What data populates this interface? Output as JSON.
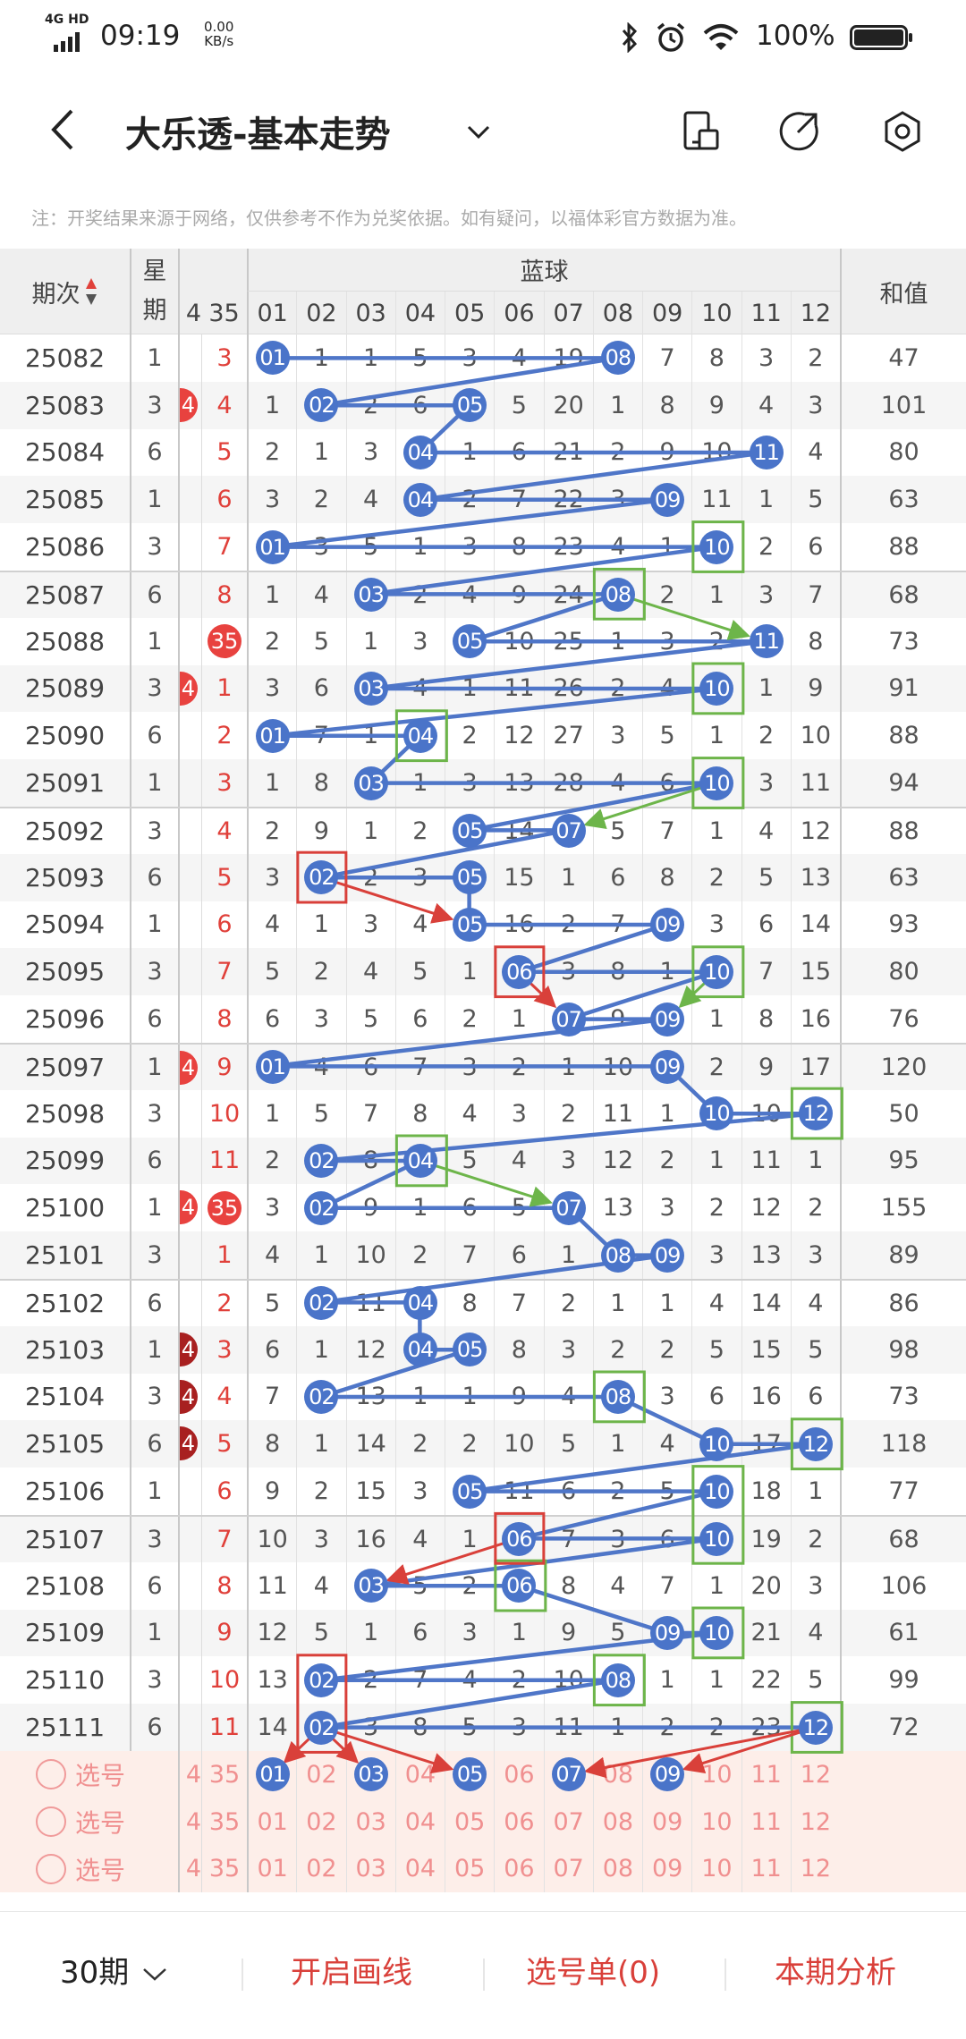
{
  "status_bar": {
    "network": "4G HD",
    "time": "09:19",
    "speed_value": "0.00",
    "speed_unit": "KB/s",
    "battery": "100%"
  },
  "header": {
    "title": "大乐透-基本走势",
    "icons": [
      "back-icon",
      "chevron-down-icon",
      "phone-icon",
      "share-icon",
      "settings-icon"
    ]
  },
  "note": "注：开奖结果来源于网络，仅供参考不作为兑奖依据。如有疑问，以福体彩官方数据为准。",
  "table": {
    "headers": {
      "period": "期次",
      "weekday_1": "星",
      "weekday_2": "期",
      "group": "蓝球",
      "sum": "和值",
      "partial": "4",
      "col35": "35",
      "blue_cols": [
        "01",
        "02",
        "03",
        "04",
        "05",
        "06",
        "07",
        "08",
        "09",
        "10",
        "11",
        "12"
      ]
    },
    "colors": {
      "ball": "#4a74c9",
      "red": "#e8423f",
      "green": "#6db54a",
      "box_red": "#d9403a"
    },
    "rows": [
      {
        "period": "25082",
        "weekday": "1",
        "c35": "3",
        "ball35": false,
        "mark34": null,
        "cells": [
          "01",
          "1",
          "1",
          "5",
          "3",
          "4",
          "19",
          "08",
          "7",
          "8",
          "3",
          "2"
        ],
        "balls": [
          1,
          8
        ],
        "sum": "47"
      },
      {
        "period": "25083",
        "weekday": "3",
        "c35": "4",
        "ball35": false,
        "mark34": "red",
        "cells": [
          "1",
          "02",
          "2",
          "6",
          "05",
          "5",
          "20",
          "1",
          "8",
          "9",
          "4",
          "3"
        ],
        "balls": [
          2,
          5
        ],
        "sum": "101"
      },
      {
        "period": "25084",
        "weekday": "6",
        "c35": "5",
        "ball35": false,
        "mark34": null,
        "cells": [
          "2",
          "1",
          "3",
          "04",
          "1",
          "6",
          "21",
          "2",
          "9",
          "10",
          "11",
          "4"
        ],
        "balls": [
          4,
          11
        ],
        "sum": "80"
      },
      {
        "period": "25085",
        "weekday": "1",
        "c35": "6",
        "ball35": false,
        "mark34": null,
        "cells": [
          "3",
          "2",
          "4",
          "04",
          "2",
          "7",
          "22",
          "3",
          "09",
          "11",
          "1",
          "5"
        ],
        "balls": [
          4,
          9
        ],
        "sum": "63"
      },
      {
        "period": "25086",
        "weekday": "3",
        "c35": "7",
        "ball35": false,
        "mark34": null,
        "cells": [
          "01",
          "3",
          "5",
          "1",
          "3",
          "8",
          "23",
          "4",
          "1",
          "10",
          "2",
          "6"
        ],
        "balls": [
          1,
          10
        ],
        "sum": "88"
      },
      {
        "period": "25087",
        "weekday": "6",
        "c35": "8",
        "ball35": false,
        "mark34": null,
        "cells": [
          "1",
          "4",
          "03",
          "2",
          "4",
          "9",
          "24",
          "08",
          "2",
          "1",
          "3",
          "7"
        ],
        "balls": [
          3,
          8
        ],
        "sum": "68"
      },
      {
        "period": "25088",
        "weekday": "1",
        "c35": "35",
        "ball35": true,
        "mark34": null,
        "cells": [
          "2",
          "5",
          "1",
          "3",
          "05",
          "10",
          "25",
          "1",
          "3",
          "2",
          "11",
          "8"
        ],
        "balls": [
          5,
          11
        ],
        "sum": "73"
      },
      {
        "period": "25089",
        "weekday": "3",
        "c35": "1",
        "ball35": false,
        "mark34": "red",
        "cells": [
          "3",
          "6",
          "03",
          "4",
          "1",
          "11",
          "26",
          "2",
          "4",
          "10",
          "1",
          "9"
        ],
        "balls": [
          3,
          10
        ],
        "sum": "91"
      },
      {
        "period": "25090",
        "weekday": "6",
        "c35": "2",
        "ball35": false,
        "mark34": null,
        "cells": [
          "01",
          "7",
          "1",
          "04",
          "2",
          "12",
          "27",
          "3",
          "5",
          "1",
          "2",
          "10"
        ],
        "balls": [
          1,
          4
        ],
        "sum": "88"
      },
      {
        "period": "25091",
        "weekday": "1",
        "c35": "3",
        "ball35": false,
        "mark34": null,
        "cells": [
          "1",
          "8",
          "03",
          "1",
          "3",
          "13",
          "28",
          "4",
          "6",
          "10",
          "3",
          "11"
        ],
        "balls": [
          3,
          10
        ],
        "sum": "94"
      },
      {
        "period": "25092",
        "weekday": "3",
        "c35": "4",
        "ball35": false,
        "mark34": null,
        "cells": [
          "2",
          "9",
          "1",
          "2",
          "05",
          "14",
          "07",
          "5",
          "7",
          "1",
          "4",
          "12"
        ],
        "balls": [
          5,
          7
        ],
        "sum": "88"
      },
      {
        "period": "25093",
        "weekday": "6",
        "c35": "5",
        "ball35": false,
        "mark34": null,
        "cells": [
          "3",
          "02",
          "2",
          "3",
          "05",
          "15",
          "1",
          "6",
          "8",
          "2",
          "5",
          "13"
        ],
        "balls": [
          2,
          5
        ],
        "sum": "63"
      },
      {
        "period": "25094",
        "weekday": "1",
        "c35": "6",
        "ball35": false,
        "mark34": null,
        "cells": [
          "4",
          "1",
          "3",
          "4",
          "05",
          "16",
          "2",
          "7",
          "09",
          "3",
          "6",
          "14"
        ],
        "balls": [
          5,
          9
        ],
        "sum": "93"
      },
      {
        "period": "25095",
        "weekday": "3",
        "c35": "7",
        "ball35": false,
        "mark34": null,
        "cells": [
          "5",
          "2",
          "4",
          "5",
          "1",
          "06",
          "3",
          "8",
          "1",
          "10",
          "7",
          "15"
        ],
        "balls": [
          6,
          10
        ],
        "sum": "80"
      },
      {
        "period": "25096",
        "weekday": "6",
        "c35": "8",
        "ball35": false,
        "mark34": null,
        "cells": [
          "6",
          "3",
          "5",
          "6",
          "2",
          "1",
          "07",
          "9",
          "09",
          "1",
          "8",
          "16"
        ],
        "balls": [
          7,
          9
        ],
        "sum": "76"
      },
      {
        "period": "25097",
        "weekday": "1",
        "c35": "9",
        "ball35": false,
        "mark34": "red",
        "cells": [
          "01",
          "4",
          "6",
          "7",
          "3",
          "2",
          "1",
          "10",
          "09",
          "2",
          "9",
          "17"
        ],
        "balls": [
          1,
          9
        ],
        "sum": "120"
      },
      {
        "period": "25098",
        "weekday": "3",
        "c35": "10",
        "ball35": false,
        "mark34": null,
        "cells": [
          "1",
          "5",
          "7",
          "8",
          "4",
          "3",
          "2",
          "11",
          "1",
          "10",
          "10",
          "12"
        ],
        "balls": [
          10,
          12
        ],
        "sum": "50"
      },
      {
        "period": "25099",
        "weekday": "6",
        "c35": "11",
        "ball35": false,
        "mark34": null,
        "cells": [
          "2",
          "02",
          "8",
          "04",
          "5",
          "4",
          "3",
          "12",
          "2",
          "1",
          "11",
          "1"
        ],
        "balls": [
          2,
          4
        ],
        "sum": "95"
      },
      {
        "period": "25100",
        "weekday": "1",
        "c35": "35",
        "ball35": true,
        "mark34": "red",
        "cells": [
          "3",
          "02",
          "9",
          "1",
          "6",
          "5",
          "07",
          "13",
          "3",
          "2",
          "12",
          "2"
        ],
        "balls": [
          2,
          7
        ],
        "sum": "155"
      },
      {
        "period": "25101",
        "weekday": "3",
        "c35": "1",
        "ball35": false,
        "mark34": null,
        "cells": [
          "4",
          "1",
          "10",
          "2",
          "7",
          "6",
          "1",
          "08",
          "09",
          "3",
          "13",
          "3"
        ],
        "balls": [
          8,
          9
        ],
        "sum": "89"
      },
      {
        "period": "25102",
        "weekday": "6",
        "c35": "2",
        "ball35": false,
        "mark34": null,
        "cells": [
          "5",
          "02",
          "11",
          "04",
          "8",
          "7",
          "2",
          "1",
          "1",
          "4",
          "14",
          "4"
        ],
        "balls": [
          2,
          4
        ],
        "sum": "86"
      },
      {
        "period": "25103",
        "weekday": "1",
        "c35": "3",
        "ball35": false,
        "mark34": "dark",
        "cells": [
          "6",
          "1",
          "12",
          "04",
          "05",
          "8",
          "3",
          "2",
          "2",
          "5",
          "15",
          "5"
        ],
        "balls": [
          4,
          5
        ],
        "sum": "98"
      },
      {
        "period": "25104",
        "weekday": "3",
        "c35": "4",
        "ball35": false,
        "mark34": "dark",
        "cells": [
          "7",
          "02",
          "13",
          "1",
          "1",
          "9",
          "4",
          "08",
          "3",
          "6",
          "16",
          "6"
        ],
        "balls": [
          2,
          8
        ],
        "sum": "73"
      },
      {
        "period": "25105",
        "weekday": "6",
        "c35": "5",
        "ball35": false,
        "mark34": "dark",
        "cells": [
          "8",
          "1",
          "14",
          "2",
          "2",
          "10",
          "5",
          "1",
          "4",
          "10",
          "17",
          "12"
        ],
        "balls": [
          10,
          12
        ],
        "sum": "118"
      },
      {
        "period": "25106",
        "weekday": "1",
        "c35": "6",
        "ball35": false,
        "mark34": null,
        "cells": [
          "9",
          "2",
          "15",
          "3",
          "05",
          "11",
          "6",
          "2",
          "5",
          "10",
          "18",
          "1"
        ],
        "balls": [
          5,
          10
        ],
        "sum": "77"
      },
      {
        "period": "25107",
        "weekday": "3",
        "c35": "7",
        "ball35": false,
        "mark34": null,
        "cells": [
          "10",
          "3",
          "16",
          "4",
          "1",
          "06",
          "7",
          "3",
          "6",
          "10",
          "19",
          "2"
        ],
        "balls": [
          6,
          10
        ],
        "sum": "68"
      },
      {
        "period": "25108",
        "weekday": "6",
        "c35": "8",
        "ball35": false,
        "mark34": null,
        "cells": [
          "11",
          "4",
          "03",
          "5",
          "2",
          "06",
          "8",
          "4",
          "7",
          "1",
          "20",
          "3"
        ],
        "balls": [
          3,
          6
        ],
        "sum": "106"
      },
      {
        "period": "25109",
        "weekday": "1",
        "c35": "9",
        "ball35": false,
        "mark34": null,
        "cells": [
          "12",
          "5",
          "1",
          "6",
          "3",
          "1",
          "9",
          "5",
          "09",
          "10",
          "21",
          "4"
        ],
        "balls": [
          9,
          10
        ],
        "sum": "61"
      },
      {
        "period": "25110",
        "weekday": "3",
        "c35": "10",
        "ball35": false,
        "mark34": null,
        "cells": [
          "13",
          "02",
          "2",
          "7",
          "4",
          "2",
          "10",
          "08",
          "1",
          "1",
          "22",
          "5"
        ],
        "balls": [
          2,
          8
        ],
        "sum": "99"
      },
      {
        "period": "25111",
        "weekday": "6",
        "c35": "11",
        "ball35": false,
        "mark34": null,
        "cells": [
          "14",
          "02",
          "3",
          "8",
          "5",
          "3",
          "11",
          "1",
          "2",
          "2",
          "23",
          "12"
        ],
        "balls": [
          2,
          12
        ],
        "sum": "72"
      }
    ],
    "pick_rows": [
      {
        "label": "选号",
        "c34": "4",
        "c35": "35",
        "nums": [
          "01",
          "02",
          "03",
          "04",
          "05",
          "06",
          "07",
          "08",
          "09",
          "10",
          "11",
          "12"
        ],
        "selected": [
          1,
          3,
          5,
          7,
          9
        ]
      },
      {
        "label": "选号",
        "c34": "4",
        "c35": "35",
        "nums": [
          "01",
          "02",
          "03",
          "04",
          "05",
          "06",
          "07",
          "08",
          "09",
          "10",
          "11",
          "12"
        ],
        "selected": []
      },
      {
        "label": "选号",
        "c34": "4",
        "c35": "35",
        "nums": [
          "01",
          "02",
          "03",
          "04",
          "05",
          "06",
          "07",
          "08",
          "09",
          "10",
          "11",
          "12"
        ],
        "selected": []
      }
    ],
    "annotations": {
      "green_boxes": [
        {
          "row": 4,
          "col": 10,
          "span": 1
        },
        {
          "row": 5,
          "col": 8,
          "span": 1
        },
        {
          "row": 7,
          "col": 10,
          "span": 1
        },
        {
          "row": 8,
          "col": 4,
          "span": 1
        },
        {
          "row": 9,
          "col": 10,
          "span": 1
        },
        {
          "row": 13,
          "col": 10,
          "span": 1
        },
        {
          "row": 16,
          "col": 12,
          "span": 1
        },
        {
          "row": 17,
          "col": 4,
          "span": 1
        },
        {
          "row": 22,
          "col": 8,
          "span": 1
        },
        {
          "row": 23,
          "col": 12,
          "span": 1
        },
        {
          "row": 24,
          "col": 10,
          "span": 2
        },
        {
          "row": 26,
          "col": 6,
          "span": 1
        },
        {
          "row": 27,
          "col": 10,
          "span": 1
        },
        {
          "row": 28,
          "col": 8,
          "span": 1
        },
        {
          "row": 29,
          "col": 12,
          "span": 1
        }
      ],
      "red_boxes": [
        {
          "row": 11,
          "col": 2,
          "span": 1
        },
        {
          "row": 13,
          "col": 6,
          "span": 1
        },
        {
          "row": 25,
          "col": 6,
          "span": 1
        },
        {
          "row": 28,
          "col": 2,
          "span": 2
        }
      ],
      "green_arrows": [
        [
          5,
          8,
          6,
          11
        ],
        [
          9,
          10,
          10,
          7
        ],
        [
          13,
          10,
          14,
          9
        ],
        [
          17,
          4,
          18,
          7
        ]
      ],
      "red_arrows": [
        [
          11,
          2,
          12,
          5
        ],
        [
          13,
          6,
          14,
          7
        ],
        [
          25,
          6,
          26,
          3
        ],
        [
          29,
          2,
          30,
          1
        ],
        [
          29,
          2,
          30,
          3
        ],
        [
          29,
          2,
          30,
          5
        ],
        [
          29,
          12,
          30,
          7
        ],
        [
          29,
          12,
          30,
          9
        ]
      ]
    }
  },
  "bottom_bar": {
    "periods": "30期",
    "draw": "开启画线",
    "pick_list": "选号单(0)",
    "analysis": "本期分析"
  }
}
